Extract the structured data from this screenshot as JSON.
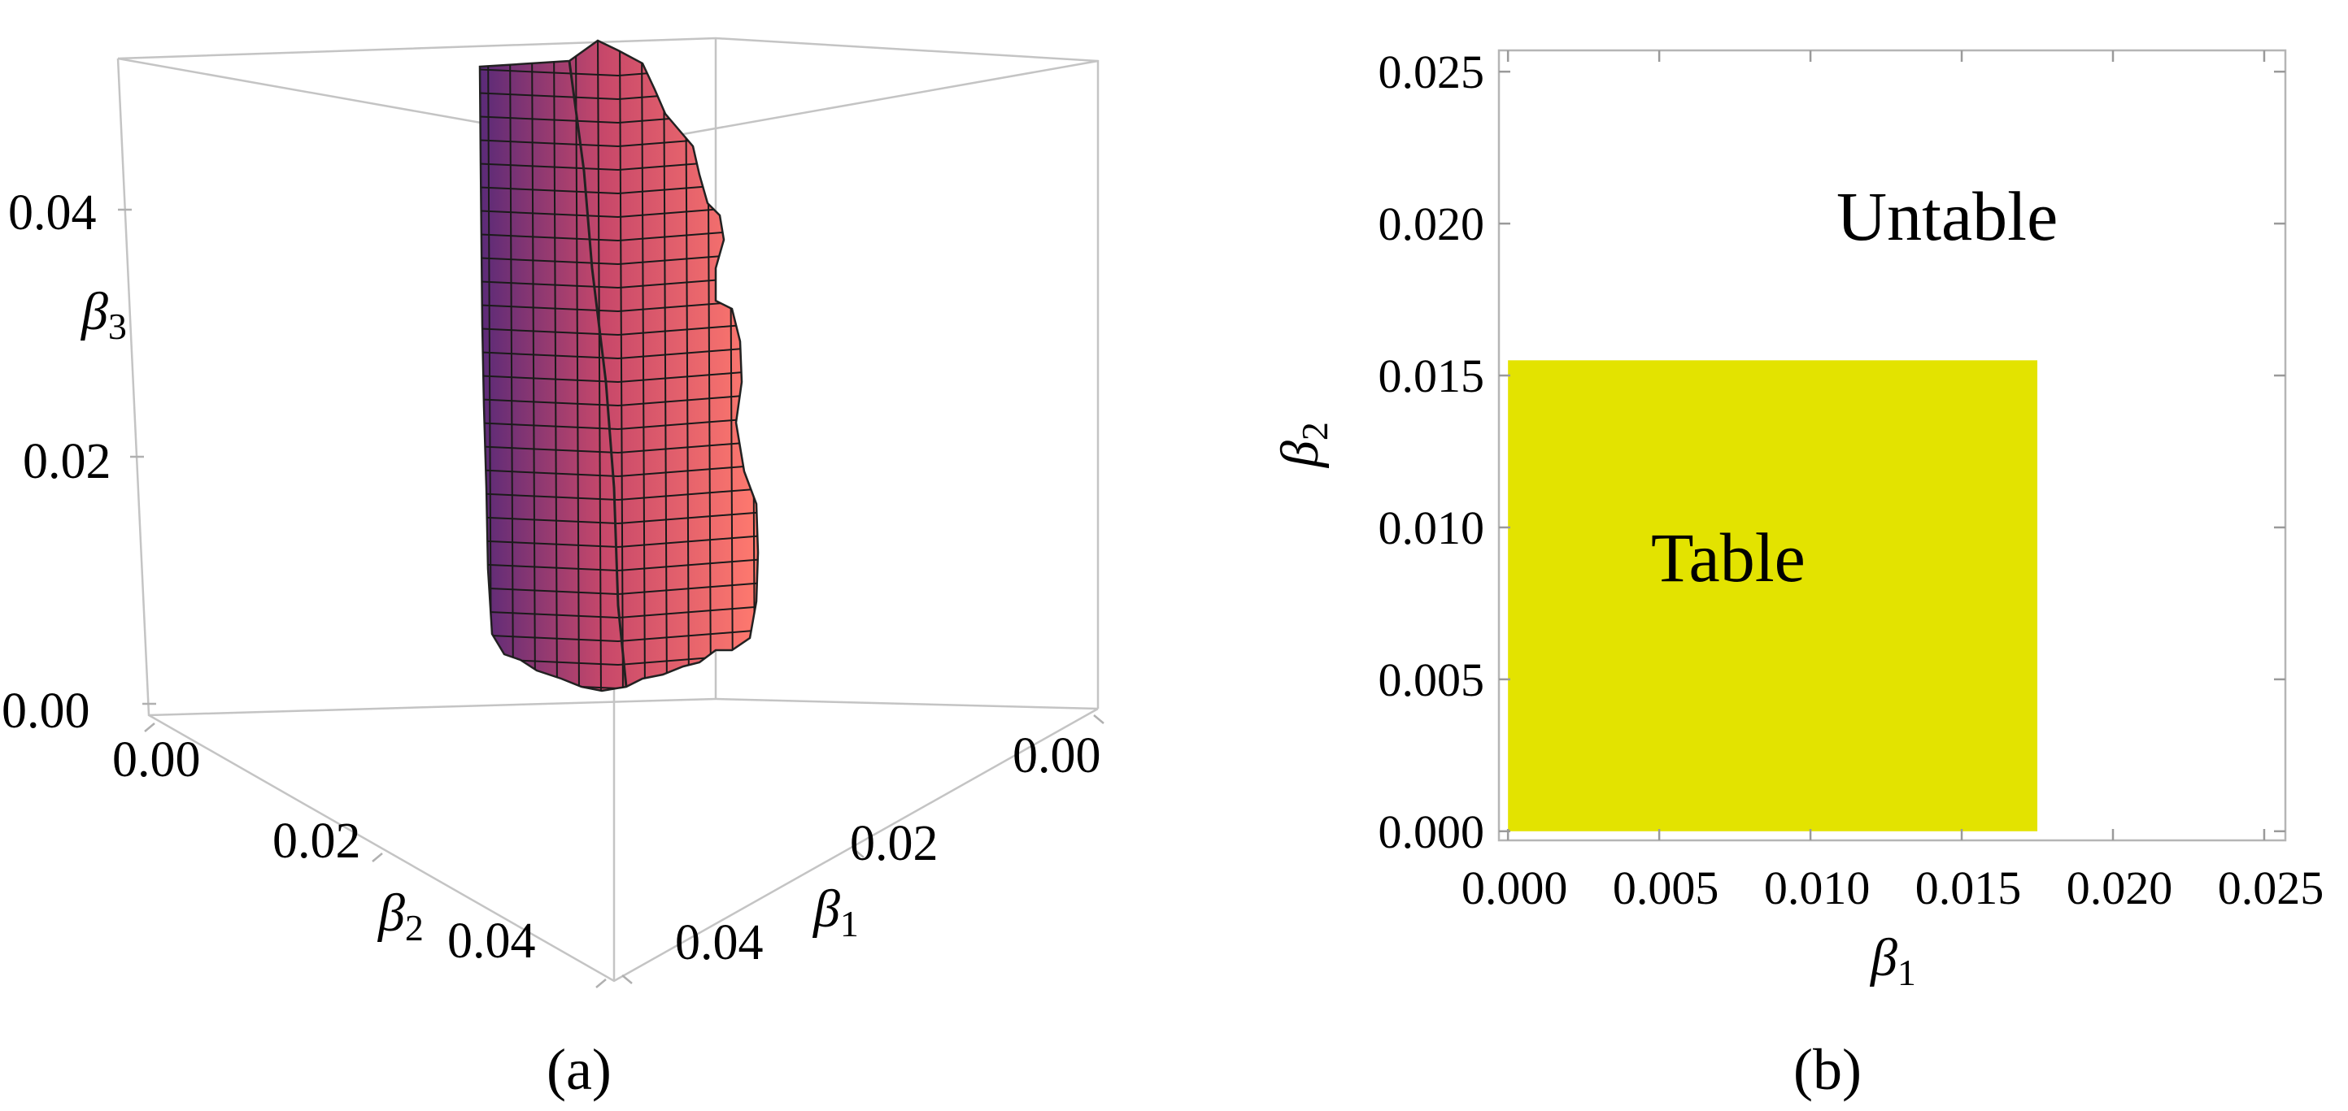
{
  "panels": {
    "a_label": "(a)",
    "b_label": "(b)"
  },
  "chart_data": [
    {
      "type": "surface",
      "xlabel": "β1",
      "ylabel": "β2",
      "zlabel": "β3",
      "x_ticks": [
        "0.00",
        "0.02",
        "0.04"
      ],
      "y_ticks": [
        "0.00",
        "0.02",
        "0.04"
      ],
      "z_ticks": [
        "0.00",
        "0.02",
        "0.04"
      ],
      "xlim": [
        0,
        0.05
      ],
      "ylim": [
        0,
        0.05
      ],
      "zlim": [
        0,
        0.05
      ],
      "surface_colors": [
        "#5a2a78",
        "#c8486a",
        "#ff7a6e"
      ],
      "description_note": ""
    },
    {
      "type": "area",
      "xlabel": "β1",
      "ylabel": "β2",
      "x_ticks": [
        "0.000",
        "0.005",
        "0.010",
        "0.015",
        "0.020",
        "0.025"
      ],
      "y_ticks": [
        "0.000",
        "0.005",
        "0.010",
        "0.015",
        "0.020",
        "0.025"
      ],
      "xlim": [
        -0.0003,
        0.0257
      ],
      "ylim": [
        -0.0003,
        0.0257
      ],
      "regions": [
        {
          "name": "Table",
          "x_range": [
            0.0,
            0.0175
          ],
          "y_range": [
            0.0,
            0.0155
          ],
          "color": "#e3e300"
        },
        {
          "name": "Untable",
          "color": "#ffffff"
        }
      ]
    }
  ]
}
